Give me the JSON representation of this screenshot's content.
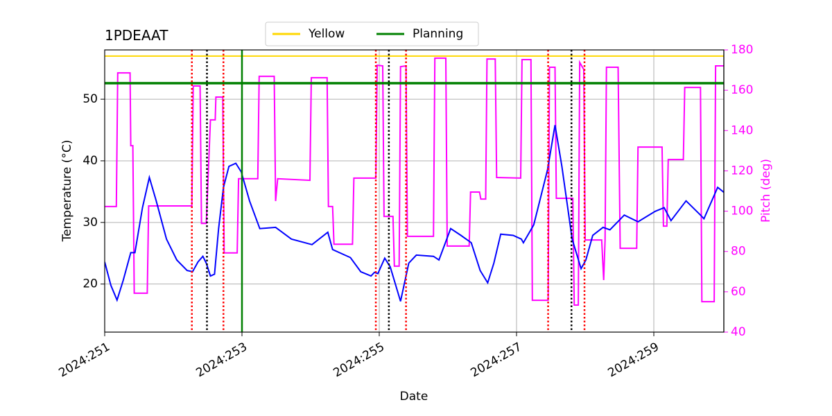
{
  "chart_data": {
    "type": "line",
    "title": "1PDEAAT",
    "xlabel": "Date",
    "ylabel": "Temperature (°C)",
    "y2label": "Pitch (deg)",
    "y2color": "#ff00ff",
    "xlim": [
      251,
      260.02
    ],
    "ylim": [
      12.2,
      58
    ],
    "y2lim": [
      40,
      180
    ],
    "xticks": [
      {
        "value": 251,
        "label": "2024:251"
      },
      {
        "value": 253,
        "label": "2024:253"
      },
      {
        "value": 255,
        "label": "2024:255"
      },
      {
        "value": 257,
        "label": "2024:257"
      },
      {
        "value": 259,
        "label": "2024:259"
      }
    ],
    "yticks": [
      20,
      30,
      40,
      50
    ],
    "y2ticks": [
      40,
      60,
      80,
      100,
      120,
      140,
      160,
      180
    ],
    "grid": true,
    "legend": "top",
    "hlines": [
      {
        "name": "Yellow",
        "color": "#ffd700",
        "value": 57
      },
      {
        "name": "Planning",
        "color": "#008000",
        "value": 52.6
      }
    ],
    "vlines": [
      {
        "color": "#008000",
        "dash": "solid",
        "x": [
          253
        ]
      },
      {
        "color": "#ff0000",
        "dash": "dotted",
        "x": [
          252.27,
          252.73,
          254.95,
          255.39,
          257.46,
          257.99
        ]
      },
      {
        "color": "#000000",
        "dash": "dotted",
        "x": [
          252.49,
          255.14,
          257.8
        ]
      }
    ],
    "series": [
      {
        "color": "#ff00ff",
        "axis": "y2",
        "x": [
          251.0,
          251.17,
          251.19,
          251.37,
          251.38,
          251.41,
          251.43,
          251.62,
          251.64,
          252.27,
          252.29,
          252.39,
          252.41,
          252.48,
          252.54,
          252.61,
          252.62,
          252.72,
          252.74,
          252.93,
          252.95,
          253.23,
          253.25,
          253.47,
          253.49,
          253.52,
          253.99,
          254.01,
          254.24,
          254.26,
          254.32,
          254.34,
          254.61,
          254.63,
          254.95,
          254.97,
          255.05,
          255.07,
          255.2,
          255.22,
          255.29,
          255.31,
          255.39,
          255.41,
          255.79,
          255.81,
          255.97,
          255.99,
          256.31,
          256.33,
          256.46,
          256.48,
          256.55,
          256.57,
          256.69,
          256.71,
          257.06,
          257.08,
          257.21,
          257.23,
          257.46,
          257.48,
          257.56,
          257.58,
          257.82,
          257.84,
          257.9,
          257.92,
          257.98,
          258.0,
          258.24,
          258.27,
          258.29,
          258.31,
          258.48,
          258.51,
          258.75,
          258.77,
          259.12,
          259.14,
          259.19,
          259.21,
          259.43,
          259.45,
          259.68,
          259.7,
          259.88,
          259.9,
          260.02
        ],
        "values": [
          102.3,
          102.3,
          168.6,
          168.6,
          132.5,
          132.5,
          59.3,
          59.3,
          102.6,
          102.6,
          162.1,
          162.1,
          93.9,
          93.9,
          145.3,
          145.3,
          156.6,
          156.6,
          79.3,
          79.3,
          116.1,
          116.1,
          166.9,
          166.9,
          105.0,
          116.1,
          115.3,
          166.2,
          166.2,
          102.3,
          102.3,
          83.6,
          83.6,
          116.4,
          116.4,
          172.4,
          172.1,
          97.4,
          97.4,
          72.7,
          72.7,
          171.7,
          172.1,
          87.5,
          87.5,
          175.9,
          175.9,
          82.7,
          82.7,
          109.5,
          109.5,
          106.0,
          106.0,
          175.5,
          175.5,
          116.7,
          116.4,
          175.2,
          175.2,
          55.8,
          55.8,
          171.4,
          171.4,
          106.4,
          106.4,
          53.4,
          53.4,
          173.8,
          170.3,
          85.7,
          85.7,
          65.8,
          85.7,
          171.4,
          171.4,
          81.6,
          81.6,
          131.8,
          131.8,
          92.6,
          92.6,
          125.6,
          125.6,
          161.4,
          161.4,
          55.1,
          55.1,
          172.1,
          172.1
        ]
      },
      {
        "color": "#0000ff",
        "axis": "y",
        "x": [
          251.0,
          251.09,
          251.18,
          251.27,
          251.38,
          251.44,
          251.55,
          251.65,
          251.75,
          251.9,
          252.05,
          252.2,
          252.28,
          252.33,
          252.36,
          252.43,
          252.48,
          252.54,
          252.6,
          252.66,
          252.73,
          252.81,
          252.91,
          252.99,
          253.11,
          253.26,
          253.49,
          253.72,
          254.02,
          254.25,
          254.32,
          254.58,
          254.73,
          254.88,
          254.93,
          254.98,
          255.08,
          255.16,
          255.31,
          255.43,
          255.54,
          255.79,
          255.87,
          256.04,
          256.19,
          256.34,
          256.47,
          256.58,
          256.67,
          256.77,
          256.95,
          257.07,
          257.1,
          257.25,
          257.45,
          257.56,
          257.66,
          257.81,
          257.94,
          258.01,
          258.11,
          258.26,
          258.36,
          258.57,
          258.77,
          259.02,
          259.15,
          259.25,
          259.47,
          259.68,
          259.73,
          259.93,
          260.02
        ],
        "values": [
          23.6,
          19.8,
          17.4,
          20.6,
          25.1,
          25.1,
          32.4,
          37.3,
          33.5,
          27.3,
          23.9,
          22.2,
          22.0,
          23.0,
          23.6,
          24.5,
          23.4,
          21.3,
          21.6,
          29.0,
          35.7,
          39.1,
          39.6,
          38.2,
          33.5,
          29.0,
          29.2,
          27.3,
          26.4,
          28.4,
          25.6,
          24.3,
          22.0,
          21.3,
          21.9,
          21.7,
          24.2,
          22.8,
          17.2,
          23.4,
          24.7,
          24.5,
          23.9,
          29.0,
          27.9,
          26.7,
          22.2,
          20.2,
          23.4,
          28.1,
          27.9,
          27.3,
          26.7,
          29.6,
          38.5,
          45.8,
          39.1,
          27.3,
          22.5,
          23.9,
          27.9,
          29.2,
          28.8,
          31.2,
          30.1,
          31.8,
          32.4,
          30.3,
          33.5,
          31.2,
          30.6,
          35.7,
          34.9
        ]
      }
    ]
  }
}
